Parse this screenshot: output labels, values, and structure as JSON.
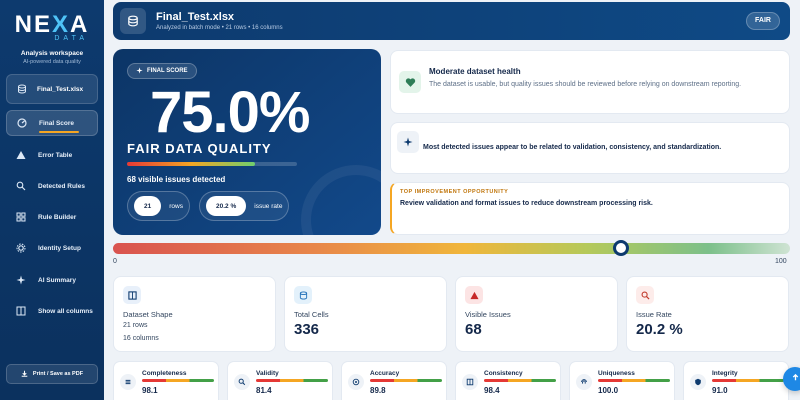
{
  "brand": {
    "logo_main_a": "NE",
    "logo_main_x": "X",
    "logo_main_b": "A",
    "logo_sub": "DATA"
  },
  "sidebar": {
    "workspace_title": "Analysis workspace",
    "workspace_subtitle": "AI-powered data quality",
    "file_label": "Final_Test.xlsx",
    "items": [
      {
        "label": "Final Score",
        "icon": "gauge-icon",
        "active": true
      },
      {
        "label": "Error Table",
        "icon": "warning-triangle-icon"
      },
      {
        "label": "Detected Rules",
        "icon": "search-list-icon"
      },
      {
        "label": "Rule Builder",
        "icon": "grid-icon"
      },
      {
        "label": "Identity Setup",
        "icon": "gear-icon"
      },
      {
        "label": "AI Summary",
        "icon": "sparkle-icon"
      },
      {
        "label": "Show all columns",
        "icon": "columns-icon"
      }
    ],
    "print_label": "Print / Save as PDF"
  },
  "header": {
    "title": "Final_Test.xlsx",
    "subtitle": "Analyzed in batch mode  •  21 rows  •  16 columns",
    "badge": "FAIR"
  },
  "score": {
    "pill": "FINAL SCORE",
    "value": "75.0%",
    "percent": 75.0,
    "label": "FAIR DATA QUALITY",
    "issues": "68 visible issues detected",
    "rows_value": "21",
    "rows_label": "rows",
    "rate_value": "20.2 %",
    "rate_label": "issue rate"
  },
  "info": {
    "health_title": "Moderate dataset health",
    "health_text": "The dataset is usable, but quality issues should be reviewed before relying on downstream reporting.",
    "pattern_text": "Most detected issues appear to be related to validation, consistency, and standardization.",
    "opportunity_kicker": "TOP IMPROVEMENT OPPORTUNITY",
    "opportunity_text": "Review validation and format issues to reduce downstream processing risk."
  },
  "gauge": {
    "min_label": "0",
    "max_label": "100",
    "value": 75
  },
  "stats": {
    "shape_label": "Dataset Shape",
    "shape_rows": "21  rows",
    "shape_cols": "16  columns",
    "cells_label": "Total Cells",
    "cells_value": "336",
    "issues_label": "Visible Issues",
    "issues_value": "68",
    "rate_label": "Issue Rate",
    "rate_value": "20.2 %"
  },
  "metrics": [
    {
      "name": "Completeness",
      "value": "98.1",
      "icon": "list-icon"
    },
    {
      "name": "Validity",
      "value": "81.4",
      "icon": "search-icon"
    },
    {
      "name": "Accuracy",
      "value": "89.8",
      "icon": "target-icon"
    },
    {
      "name": "Consistency",
      "value": "98.4",
      "icon": "table-icon"
    },
    {
      "name": "Uniqueness",
      "value": "100.0",
      "icon": "fingerprint-icon"
    },
    {
      "name": "Integrity",
      "value": "91.0",
      "icon": "shield-icon"
    }
  ],
  "colors": {
    "navy": "#0d3a6e",
    "accent": "#f5a623",
    "danger": "#c62828",
    "info": "#1e88e5"
  }
}
